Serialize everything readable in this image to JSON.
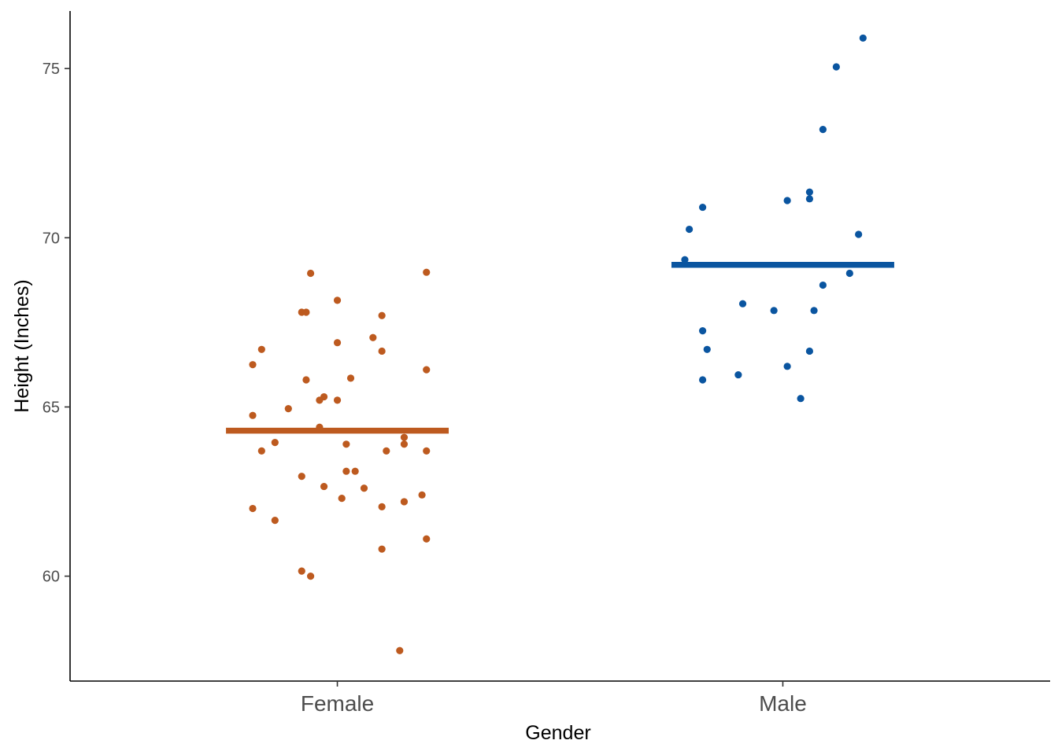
{
  "chart_data": {
    "type": "scatter",
    "title": "",
    "xlabel": "Gender",
    "ylabel": "Height (Inches)",
    "categories": [
      "Female",
      "Male"
    ],
    "ylim": [
      56.9,
      76.7
    ],
    "yticks": [
      "60",
      "65",
      "70",
      "75"
    ],
    "grid": false,
    "legend": "none",
    "series": [
      {
        "category": "Female",
        "color": "#bd5a1f",
        "mean": 64.3,
        "points": [
          {
            "x": 0.94,
            "y": 68.95
          },
          {
            "x": 1.2,
            "y": 68.98
          },
          {
            "x": 1.0,
            "y": 68.15
          },
          {
            "x": 0.92,
            "y": 67.8
          },
          {
            "x": 0.93,
            "y": 67.8
          },
          {
            "x": 1.1,
            "y": 67.7
          },
          {
            "x": 1.08,
            "y": 67.05
          },
          {
            "x": 1.0,
            "y": 66.9
          },
          {
            "x": 0.83,
            "y": 66.7
          },
          {
            "x": 1.1,
            "y": 66.65
          },
          {
            "x": 0.81,
            "y": 66.25
          },
          {
            "x": 1.2,
            "y": 66.1
          },
          {
            "x": 0.93,
            "y": 65.8
          },
          {
            "x": 1.03,
            "y": 65.85
          },
          {
            "x": 0.97,
            "y": 65.3
          },
          {
            "x": 0.96,
            "y": 65.2
          },
          {
            "x": 1.0,
            "y": 65.2
          },
          {
            "x": 0.89,
            "y": 64.95
          },
          {
            "x": 0.81,
            "y": 64.75
          },
          {
            "x": 0.96,
            "y": 64.4
          },
          {
            "x": 1.15,
            "y": 64.1
          },
          {
            "x": 0.86,
            "y": 63.95
          },
          {
            "x": 1.02,
            "y": 63.9
          },
          {
            "x": 1.15,
            "y": 63.9
          },
          {
            "x": 0.83,
            "y": 63.7
          },
          {
            "x": 1.11,
            "y": 63.7
          },
          {
            "x": 1.2,
            "y": 63.7
          },
          {
            "x": 1.02,
            "y": 63.1
          },
          {
            "x": 1.04,
            "y": 63.1
          },
          {
            "x": 0.92,
            "y": 62.95
          },
          {
            "x": 0.97,
            "y": 62.65
          },
          {
            "x": 1.06,
            "y": 62.6
          },
          {
            "x": 1.19,
            "y": 62.4
          },
          {
            "x": 1.01,
            "y": 62.3
          },
          {
            "x": 1.15,
            "y": 62.2
          },
          {
            "x": 1.1,
            "y": 62.05
          },
          {
            "x": 0.81,
            "y": 62.0
          },
          {
            "x": 0.86,
            "y": 61.65
          },
          {
            "x": 1.2,
            "y": 61.1
          },
          {
            "x": 1.1,
            "y": 60.8
          },
          {
            "x": 0.92,
            "y": 60.15
          },
          {
            "x": 0.94,
            "y": 60.0
          },
          {
            "x": 1.14,
            "y": 57.8
          }
        ]
      },
      {
        "category": "Male",
        "color": "#0a55a0",
        "mean": 69.2,
        "points": [
          {
            "x": 2.18,
            "y": 75.9
          },
          {
            "x": 2.12,
            "y": 75.05
          },
          {
            "x": 2.09,
            "y": 73.2
          },
          {
            "x": 2.06,
            "y": 71.35
          },
          {
            "x": 2.06,
            "y": 71.15
          },
          {
            "x": 2.01,
            "y": 71.1
          },
          {
            "x": 1.82,
            "y": 70.9
          },
          {
            "x": 1.79,
            "y": 70.25
          },
          {
            "x": 2.17,
            "y": 70.1
          },
          {
            "x": 1.78,
            "y": 69.35
          },
          {
            "x": 2.15,
            "y": 68.95
          },
          {
            "x": 2.09,
            "y": 68.6
          },
          {
            "x": 1.91,
            "y": 68.05
          },
          {
            "x": 1.98,
            "y": 67.85
          },
          {
            "x": 2.07,
            "y": 67.85
          },
          {
            "x": 1.82,
            "y": 67.25
          },
          {
            "x": 1.83,
            "y": 66.7
          },
          {
            "x": 2.06,
            "y": 66.65
          },
          {
            "x": 2.01,
            "y": 66.2
          },
          {
            "x": 1.9,
            "y": 65.95
          },
          {
            "x": 1.82,
            "y": 65.8
          },
          {
            "x": 2.04,
            "y": 65.25
          }
        ]
      }
    ]
  }
}
